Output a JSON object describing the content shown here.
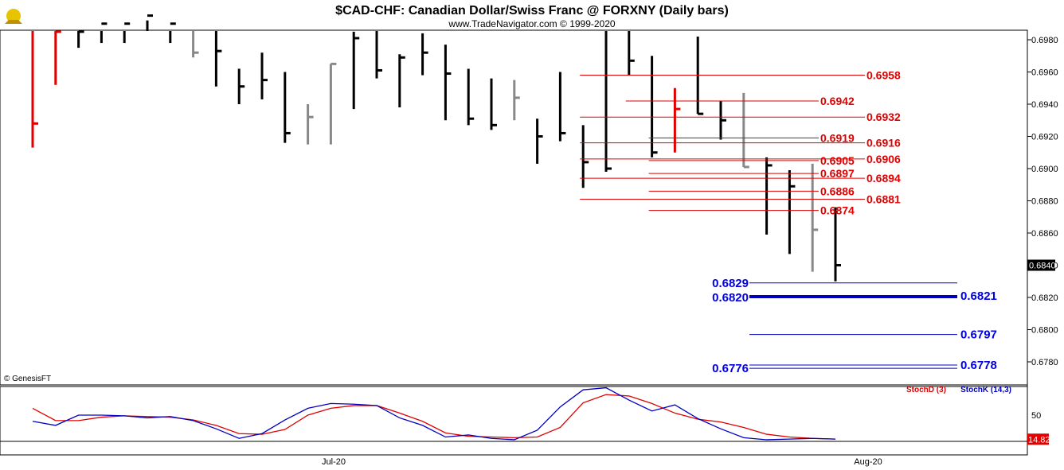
{
  "header": {
    "title": "$CAD-CHF:  Canadian Dollar/Swiss Franc @ FORXNY  (Daily bars)",
    "subtitle": "www.TradeNavigator.com © 1999-2020"
  },
  "copyright": "© GenesisFT",
  "colors": {
    "up_bar": "#000000",
    "neutral_bar": "#888888",
    "highlight_bar": "#e00000",
    "red_level": "#e00000",
    "blue_level": "#0000c0",
    "stoch_d": "#e00000",
    "stoch_k": "#0000c0",
    "price_box_bg": "#000000",
    "stoch_box_bg": "#e00000"
  },
  "chart_data": [
    {
      "type": "ohlc",
      "title": "$CAD-CHF:  Canadian Dollar/Swiss Franc @ FORXNY  (Daily bars)",
      "ylim": [
        0.6765,
        0.6992
      ],
      "y_ticks": [
        "0.6980",
        "0.6960",
        "0.6940",
        "0.6920",
        "0.6900",
        "0.6880",
        "0.6860",
        "0.6840",
        "0.6820",
        "0.6800",
        "0.6780"
      ],
      "last_price": "0.6840",
      "x_labels": [
        "Jul-20",
        "Aug-20"
      ],
      "bars": [
        {
          "high": 0.7,
          "low": 0.6913,
          "close": 0.6928,
          "color": "red"
        },
        {
          "high": 0.7,
          "low": 0.6952,
          "close": 0.6985,
          "color": "red"
        },
        {
          "high": 0.7,
          "low": 0.6975,
          "close": 0.6985,
          "color": "black"
        },
        {
          "high": 0.7,
          "low": 0.6978,
          "close": 0.699,
          "color": "black"
        },
        {
          "high": 0.7,
          "low": 0.6978,
          "close": 0.699,
          "color": "black"
        },
        {
          "high": 0.7,
          "low": 0.6992,
          "close": 0.6995,
          "color": "black"
        },
        {
          "high": 0.7,
          "low": 0.6978,
          "close": 0.699,
          "color": "black"
        },
        {
          "high": 0.7,
          "low": 0.6969,
          "close": 0.6972,
          "color": "gray"
        },
        {
          "high": 0.7,
          "low": 0.6951,
          "close": 0.6973,
          "color": "black"
        },
        {
          "high": 0.6962,
          "low": 0.694,
          "close": 0.6951,
          "color": "black"
        },
        {
          "high": 0.6972,
          "low": 0.6943,
          "close": 0.6955,
          "color": "black"
        },
        {
          "high": 0.696,
          "low": 0.6916,
          "close": 0.6922,
          "color": "black"
        },
        {
          "high": 0.694,
          "low": 0.6915,
          "close": 0.6932,
          "color": "gray"
        },
        {
          "high": 0.6965,
          "low": 0.6915,
          "close": 0.6965,
          "color": "gray"
        },
        {
          "high": 0.6985,
          "low": 0.6937,
          "close": 0.6981,
          "color": "black"
        },
        {
          "high": 0.6989,
          "low": 0.6956,
          "close": 0.6961,
          "color": "black"
        },
        {
          "high": 0.6971,
          "low": 0.6938,
          "close": 0.6969,
          "color": "black"
        },
        {
          "high": 0.6984,
          "low": 0.6958,
          "close": 0.6972,
          "color": "black"
        },
        {
          "high": 0.6977,
          "low": 0.693,
          "close": 0.6959,
          "color": "black"
        },
        {
          "high": 0.6962,
          "low": 0.6927,
          "close": 0.6931,
          "color": "black"
        },
        {
          "high": 0.6956,
          "low": 0.6924,
          "close": 0.6927,
          "color": "black"
        },
        {
          "high": 0.6955,
          "low": 0.693,
          "close": 0.6944,
          "color": "gray"
        },
        {
          "high": 0.6931,
          "low": 0.6903,
          "close": 0.692,
          "color": "black"
        },
        {
          "high": 0.696,
          "low": 0.6917,
          "close": 0.6922,
          "color": "black"
        },
        {
          "high": 0.6927,
          "low": 0.6888,
          "close": 0.6904,
          "color": "black"
        },
        {
          "high": 0.7,
          "low": 0.6898,
          "close": 0.69,
          "color": "black"
        },
        {
          "high": 0.7,
          "low": 0.6958,
          "close": 0.6967,
          "color": "black"
        },
        {
          "high": 0.697,
          "low": 0.6907,
          "close": 0.691,
          "color": "black"
        },
        {
          "high": 0.695,
          "low": 0.691,
          "close": 0.6937,
          "color": "red"
        },
        {
          "high": 0.6982,
          "low": 0.6934,
          "close": 0.6934,
          "color": "black"
        },
        {
          "high": 0.6942,
          "low": 0.6918,
          "close": 0.693,
          "color": "black"
        },
        {
          "high": 0.6947,
          "low": 0.6901,
          "close": 0.6901,
          "color": "gray"
        },
        {
          "high": 0.6907,
          "low": 0.6859,
          "close": 0.6902,
          "color": "black"
        },
        {
          "high": 0.6899,
          "low": 0.6847,
          "close": 0.6889,
          "color": "black"
        },
        {
          "high": 0.6903,
          "low": 0.6836,
          "close": 0.6862,
          "color": "gray"
        },
        {
          "high": 0.6876,
          "low": 0.683,
          "close": 0.684,
          "color": "black"
        }
      ],
      "red_levels": [
        {
          "label": "0.6958",
          "value": 0.6958,
          "from_bar": 24,
          "label_side": "right"
        },
        {
          "label": "0.6942",
          "value": 0.6942,
          "from_bar": 26,
          "label_side": "right"
        },
        {
          "label": "0.6932",
          "value": 0.6932,
          "from_bar": 24,
          "label_side": "right"
        },
        {
          "label": "0.6919",
          "value": 0.6919,
          "from_bar": 27,
          "label_side": "right"
        },
        {
          "label": "0.6916",
          "value": 0.6916,
          "from_bar": 24,
          "label_side": "right"
        },
        {
          "label": "0.6905",
          "value": 0.6905,
          "from_bar": 27,
          "label_side": "right"
        },
        {
          "label": "0.6906",
          "value": 0.6906,
          "from_bar": 24,
          "label_side": "right"
        },
        {
          "label": "0.6897",
          "value": 0.6897,
          "from_bar": 27,
          "label_side": "right"
        },
        {
          "label": "0.6894",
          "value": 0.6894,
          "from_bar": 24,
          "label_side": "right"
        },
        {
          "label": "0.6886",
          "value": 0.6886,
          "from_bar": 27,
          "label_side": "right"
        },
        {
          "label": "0.6881",
          "value": 0.6881,
          "from_bar": 24,
          "label_side": "right"
        },
        {
          "label": "0.6874",
          "value": 0.6874,
          "from_bar": 27,
          "label_side": "right"
        }
      ],
      "blue_levels": [
        {
          "label": "0.6829",
          "value": 0.6829,
          "from_bar": 32,
          "label_side": "left"
        },
        {
          "label": "0.6820",
          "value": 0.682,
          "from_bar": 32,
          "label_side": "left"
        },
        {
          "label": "0.6821",
          "value": 0.6821,
          "from_bar": 32,
          "label_side": "right"
        },
        {
          "label": "0.6797",
          "value": 0.6797,
          "from_bar": 32,
          "label_side": "right"
        },
        {
          "label": "0.6776",
          "value": 0.6776,
          "from_bar": 32,
          "label_side": "left"
        },
        {
          "label": "0.6778",
          "value": 0.6778,
          "from_bar": 32,
          "label_side": "right"
        }
      ]
    },
    {
      "type": "line",
      "legend": [
        "StochD (3)",
        "StochK (14,3)"
      ],
      "y_ticks": [
        "50"
      ],
      "last_value": "14.82",
      "ylim": [
        0,
        100
      ],
      "series": [
        {
          "name": "StochD (3)",
          "color": "red",
          "values": [
            60,
            42,
            42,
            47,
            49,
            48,
            47,
            43,
            35,
            23,
            22,
            29,
            50,
            60,
            64,
            64,
            53,
            41,
            24,
            19,
            18,
            17,
            18,
            32,
            68,
            80,
            78,
            67,
            53,
            44,
            40,
            32,
            22,
            18,
            16,
            15
          ]
        },
        {
          "name": "StochK (14,3)",
          "color": "blue",
          "values": [
            41,
            35,
            50,
            50,
            49,
            46,
            48,
            42,
            30,
            16,
            23,
            43,
            60,
            67,
            66,
            64,
            46,
            35,
            18,
            21,
            16,
            14,
            28,
            62,
            87,
            90,
            72,
            56,
            65,
            45,
            30,
            17,
            14,
            15,
            16,
            15
          ]
        }
      ]
    }
  ]
}
